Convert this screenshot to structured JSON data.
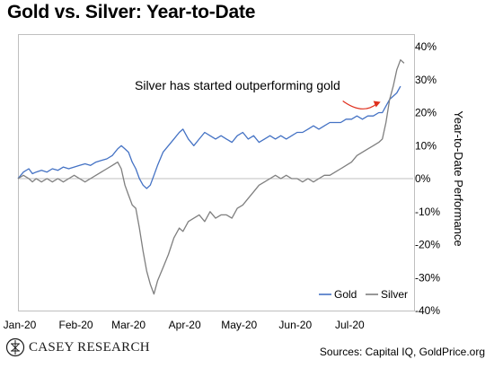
{
  "chart_data": {
    "type": "line",
    "title": "Gold vs. Silver: Year-to-Date",
    "ylabel": "Year-to-Date Performance",
    "xlabel": "",
    "ylim": [
      -40,
      40
    ],
    "yticks": [
      -40,
      -30,
      -20,
      -10,
      0,
      10,
      20,
      30,
      40
    ],
    "ytick_labels": [
      "-40%",
      "-30%",
      "-20%",
      "-10%",
      "0%",
      "10%",
      "20%",
      "30%",
      "40%"
    ],
    "x_range": [
      0,
      218
    ],
    "x_tick_positions": [
      0,
      31,
      60,
      91,
      121,
      152,
      182
    ],
    "x_tick_labels": [
      "Jan-20",
      "Feb-20",
      "Mar-20",
      "Apr-20",
      "May-20",
      "Jun-20",
      "Jul-20"
    ],
    "grid": false,
    "zero_line": true,
    "legend": "bottom-right",
    "annotation": {
      "text": "Silver has started outperforming gold",
      "arrow_to": [
        200,
        23
      ]
    },
    "series": [
      {
        "name": "Gold",
        "color": "#4472c4",
        "points": [
          [
            0,
            0
          ],
          [
            3,
            2
          ],
          [
            6,
            3
          ],
          [
            8,
            1.5
          ],
          [
            10,
            2
          ],
          [
            13,
            2.5
          ],
          [
            16,
            2
          ],
          [
            19,
            3
          ],
          [
            22,
            2.5
          ],
          [
            25,
            3.5
          ],
          [
            28,
            3
          ],
          [
            31,
            3.5
          ],
          [
            34,
            4
          ],
          [
            37,
            4.5
          ],
          [
            40,
            4
          ],
          [
            43,
            5
          ],
          [
            46,
            5.5
          ],
          [
            49,
            6
          ],
          [
            52,
            7
          ],
          [
            55,
            9
          ],
          [
            57,
            10
          ],
          [
            59,
            9
          ],
          [
            61,
            8
          ],
          [
            63,
            5
          ],
          [
            65,
            3
          ],
          [
            67,
            0
          ],
          [
            69,
            -2
          ],
          [
            71,
            -3
          ],
          [
            73,
            -2
          ],
          [
            75,
            1
          ],
          [
            77,
            4
          ],
          [
            80,
            8
          ],
          [
            83,
            10
          ],
          [
            86,
            12
          ],
          [
            89,
            14
          ],
          [
            91,
            15
          ],
          [
            94,
            12
          ],
          [
            97,
            10
          ],
          [
            100,
            12
          ],
          [
            103,
            14
          ],
          [
            106,
            13
          ],
          [
            109,
            12
          ],
          [
            112,
            13
          ],
          [
            115,
            12
          ],
          [
            118,
            11
          ],
          [
            121,
            13
          ],
          [
            124,
            14
          ],
          [
            127,
            12
          ],
          [
            130,
            13
          ],
          [
            133,
            11
          ],
          [
            136,
            12
          ],
          [
            139,
            13
          ],
          [
            142,
            12
          ],
          [
            145,
            13
          ],
          [
            148,
            12
          ],
          [
            151,
            13
          ],
          [
            154,
            14
          ],
          [
            157,
            14
          ],
          [
            160,
            15
          ],
          [
            163,
            16
          ],
          [
            166,
            15
          ],
          [
            169,
            16
          ],
          [
            172,
            17
          ],
          [
            175,
            17
          ],
          [
            178,
            17
          ],
          [
            181,
            18
          ],
          [
            184,
            18
          ],
          [
            187,
            19
          ],
          [
            190,
            18
          ],
          [
            193,
            19
          ],
          [
            196,
            19
          ],
          [
            199,
            20
          ],
          [
            201,
            20
          ],
          [
            203,
            22
          ],
          [
            205,
            24
          ],
          [
            207,
            25
          ],
          [
            209,
            26
          ],
          [
            211,
            28
          ]
        ]
      },
      {
        "name": "Silver",
        "color": "#7f7f7f",
        "points": [
          [
            0,
            0
          ],
          [
            3,
            1
          ],
          [
            6,
            0
          ],
          [
            8,
            -1
          ],
          [
            10,
            0
          ],
          [
            13,
            -1
          ],
          [
            16,
            0
          ],
          [
            19,
            -1
          ],
          [
            22,
            0
          ],
          [
            25,
            -1
          ],
          [
            28,
            0
          ],
          [
            31,
            1
          ],
          [
            34,
            0
          ],
          [
            37,
            -1
          ],
          [
            40,
            0
          ],
          [
            43,
            1
          ],
          [
            46,
            2
          ],
          [
            49,
            3
          ],
          [
            52,
            4
          ],
          [
            55,
            5
          ],
          [
            57,
            3
          ],
          [
            59,
            -2
          ],
          [
            61,
            -5
          ],
          [
            63,
            -8
          ],
          [
            65,
            -9
          ],
          [
            67,
            -15
          ],
          [
            69,
            -22
          ],
          [
            71,
            -28
          ],
          [
            73,
            -32
          ],
          [
            75,
            -35
          ],
          [
            77,
            -31
          ],
          [
            80,
            -27
          ],
          [
            83,
            -23
          ],
          [
            86,
            -18
          ],
          [
            89,
            -15
          ],
          [
            91,
            -16
          ],
          [
            94,
            -13
          ],
          [
            97,
            -12
          ],
          [
            100,
            -11
          ],
          [
            103,
            -13
          ],
          [
            106,
            -10
          ],
          [
            109,
            -12
          ],
          [
            112,
            -11
          ],
          [
            115,
            -11
          ],
          [
            118,
            -12
          ],
          [
            121,
            -9
          ],
          [
            124,
            -8
          ],
          [
            127,
            -6
          ],
          [
            130,
            -4
          ],
          [
            133,
            -2
          ],
          [
            136,
            -1
          ],
          [
            139,
            0
          ],
          [
            142,
            1
          ],
          [
            145,
            0
          ],
          [
            148,
            1
          ],
          [
            151,
            0
          ],
          [
            154,
            0
          ],
          [
            157,
            -1
          ],
          [
            160,
            0
          ],
          [
            163,
            -1
          ],
          [
            166,
            0
          ],
          [
            169,
            1
          ],
          [
            172,
            1
          ],
          [
            175,
            2
          ],
          [
            178,
            3
          ],
          [
            181,
            4
          ],
          [
            184,
            5
          ],
          [
            187,
            7
          ],
          [
            190,
            8
          ],
          [
            193,
            9
          ],
          [
            196,
            10
          ],
          [
            199,
            11
          ],
          [
            201,
            12
          ],
          [
            203,
            17
          ],
          [
            205,
            24
          ],
          [
            207,
            28
          ],
          [
            209,
            33
          ],
          [
            211,
            36
          ],
          [
            213,
            35
          ]
        ]
      }
    ]
  },
  "branding": {
    "logo_text": "CASEY RESEARCH",
    "logo_icon": "casey-research-logo-icon"
  },
  "footer": {
    "source_text": "Sources: Capital IQ, GoldPrice.org"
  }
}
